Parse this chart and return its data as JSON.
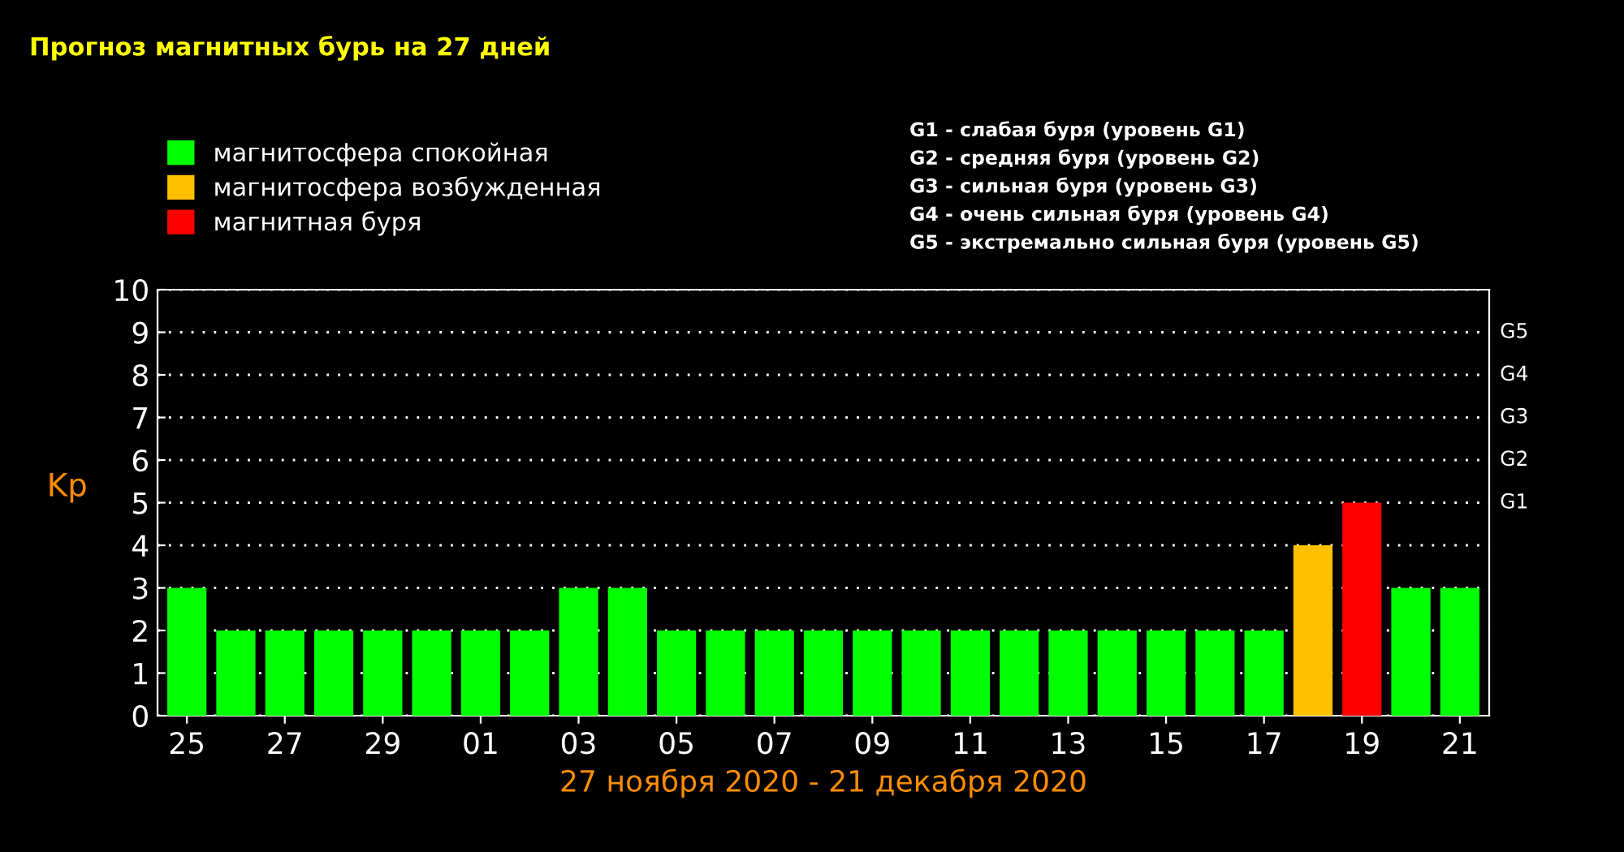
{
  "chart_data": {
    "type": "bar",
    "title": "Прогноз магнитных бурь на 27 дней",
    "xlabel": "27 ноября 2020 - 21 декабря 2020",
    "ylabel": "Kp",
    "categories": [
      "25",
      null,
      "27",
      null,
      "29",
      null,
      "01",
      null,
      "03",
      null,
      "05",
      null,
      "07",
      null,
      "09",
      null,
      "11",
      null,
      "13",
      null,
      "15",
      null,
      "17",
      null,
      "19",
      null,
      "21"
    ],
    "series": [
      {
        "name": "магнитосфера спокойная",
        "color": "#00ff00",
        "values": [
          3,
          2,
          2,
          2,
          2,
          2,
          2,
          2,
          3,
          3,
          2,
          2,
          2,
          2,
          2,
          2,
          2,
          2,
          2,
          2,
          2,
          2,
          2,
          null,
          null,
          3,
          3
        ]
      },
      {
        "name": "магнитосфера возбужденная",
        "color": "#ffc000",
        "values": [
          null,
          null,
          null,
          null,
          null,
          null,
          null,
          null,
          null,
          null,
          null,
          null,
          null,
          null,
          null,
          null,
          null,
          null,
          null,
          null,
          null,
          null,
          null,
          4,
          null,
          null,
          null
        ]
      },
      {
        "name": "магнитная буря",
        "color": "#ff0000",
        "values": [
          null,
          null,
          null,
          null,
          null,
          null,
          null,
          null,
          null,
          null,
          null,
          null,
          null,
          null,
          null,
          null,
          null,
          null,
          null,
          null,
          null,
          null,
          null,
          null,
          5,
          null,
          null
        ]
      }
    ],
    "ylim": [
      0,
      10
    ],
    "yticks": [
      0,
      1,
      2,
      3,
      4,
      5,
      6,
      7,
      8,
      9,
      10
    ],
    "annotations": [
      "G1",
      "G2",
      "G3",
      "G4",
      "G5",
      "G1 - слабая буря (уровень G1)",
      "G2 - средняя буря (уровень G2)",
      "G3 - сильная буря (уровень G3)",
      "G4 - очень сильная буря (уровень G4)",
      "G5 - экстремально сильная буря (уровень G5)"
    ],
    "grid": "y",
    "legend": "top left"
  }
}
